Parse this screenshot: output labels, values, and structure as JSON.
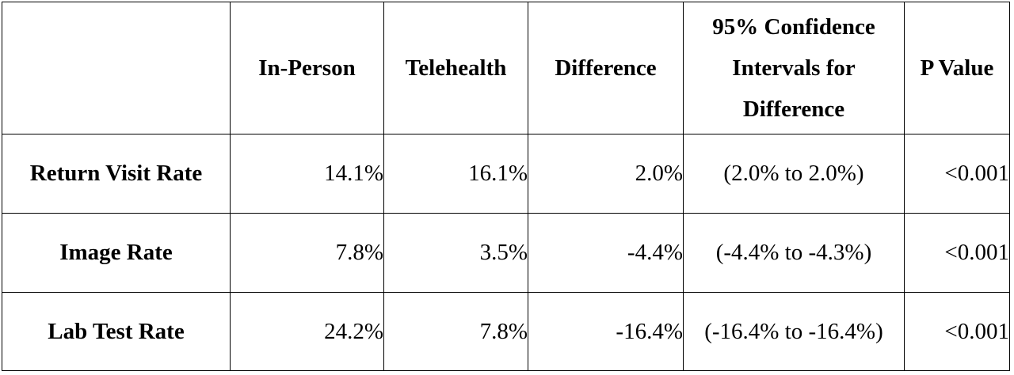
{
  "table": {
    "columns": {
      "corner": "",
      "in_person": "In-Person",
      "telehealth": "Telehealth",
      "difference": "Difference",
      "ci_line1": "95% Confidence",
      "ci_line2": "Intervals for",
      "ci_line3": "Difference",
      "p_value": "P Value"
    },
    "rows": [
      {
        "label": "Return Visit Rate",
        "in_person": "14.1%",
        "telehealth": "16.1%",
        "difference": "2.0%",
        "ci": "(2.0% to 2.0%)",
        "p_value": "<0.001"
      },
      {
        "label": "Image Rate",
        "in_person": "7.8%",
        "telehealth": "3.5%",
        "difference": "-4.4%",
        "ci": "(-4.4% to -4.3%)",
        "p_value": "<0.001"
      },
      {
        "label": "Lab Test Rate",
        "in_person": "24.2%",
        "telehealth": "7.8%",
        "difference": "-16.4%",
        "ci": "(-16.4% to -16.4%)",
        "p_value": "<0.001"
      }
    ]
  }
}
